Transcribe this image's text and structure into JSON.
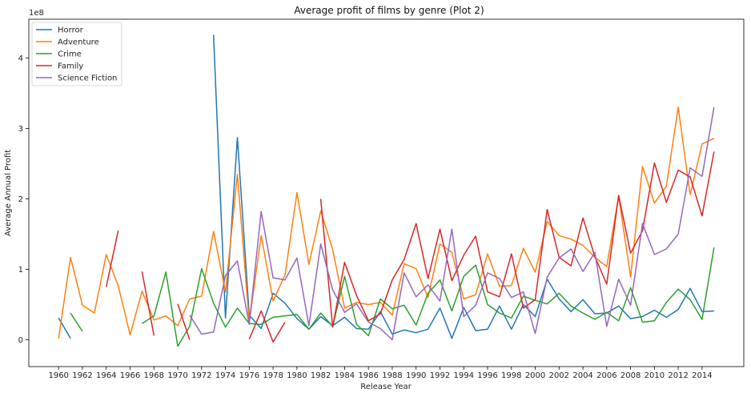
{
  "chart_data": {
    "type": "line",
    "title": "Average profit of films by genre (Plot 2)",
    "xlabel": "Release Year",
    "ylabel": "Average Annual Profit",
    "y_scale_label": "1e8",
    "y_unit_scale": 100000000,
    "xlim": [
      1957.5,
      2017.5
    ],
    "ylim": [
      -0.38,
      4.55
    ],
    "x_ticks": [
      1960,
      1962,
      1964,
      1966,
      1968,
      1970,
      1972,
      1974,
      1976,
      1978,
      1980,
      1982,
      1984,
      1986,
      1988,
      1990,
      1992,
      1994,
      1996,
      1998,
      2000,
      2002,
      2004,
      2006,
      2008,
      2010,
      2012,
      2014
    ],
    "y_ticks": [
      0,
      1,
      2,
      3,
      4
    ],
    "grid": false,
    "legend_position": "top-left",
    "series": [
      {
        "name": "Horror",
        "color": "#1f77b4",
        "points": [
          [
            1960,
            0.31
          ],
          [
            1961,
            0.02
          ],
          [
            1973,
            4.33
          ],
          [
            1974,
            0.31
          ],
          [
            1975,
            2.87
          ],
          [
            1976,
            0.35
          ],
          [
            1977,
            0.16
          ],
          [
            1978,
            0.66
          ],
          [
            1979,
            0.52
          ],
          [
            1980,
            0.3
          ],
          [
            1981,
            0.15
          ],
          [
            1982,
            0.33
          ],
          [
            1983,
            0.2
          ],
          [
            1984,
            0.32
          ],
          [
            1985,
            0.16
          ],
          [
            1986,
            0.15
          ],
          [
            1987,
            0.4
          ],
          [
            1988,
            0.08
          ],
          [
            1989,
            0.14
          ],
          [
            1990,
            0.1
          ],
          [
            1991,
            0.15
          ],
          [
            1992,
            0.45
          ],
          [
            1993,
            0.02
          ],
          [
            1994,
            0.46
          ],
          [
            1995,
            0.13
          ],
          [
            1996,
            0.15
          ],
          [
            1997,
            0.48
          ],
          [
            1998,
            0.15
          ],
          [
            1999,
            0.5
          ],
          [
            2000,
            0.33
          ],
          [
            2001,
            0.86
          ],
          [
            2002,
            0.58
          ],
          [
            2003,
            0.4
          ],
          [
            2004,
            0.57
          ],
          [
            2005,
            0.37
          ],
          [
            2006,
            0.38
          ],
          [
            2007,
            0.48
          ],
          [
            2008,
            0.3
          ],
          [
            2009,
            0.33
          ],
          [
            2010,
            0.42
          ],
          [
            2011,
            0.32
          ],
          [
            2012,
            0.43
          ],
          [
            2013,
            0.73
          ],
          [
            2014,
            0.4
          ],
          [
            2015,
            0.41
          ]
        ]
      },
      {
        "name": "Adventure",
        "color": "#ff7f0e",
        "points": [
          [
            1960,
            0.02
          ],
          [
            1961,
            1.17
          ],
          [
            1962,
            0.49
          ],
          [
            1963,
            0.38
          ],
          [
            1964,
            1.21
          ],
          [
            1965,
            0.77
          ],
          [
            1966,
            0.07
          ],
          [
            1967,
            0.69
          ],
          [
            1968,
            0.28
          ],
          [
            1969,
            0.34
          ],
          [
            1970,
            0.2
          ],
          [
            1971,
            0.58
          ],
          [
            1972,
            0.62
          ],
          [
            1973,
            1.54
          ],
          [
            1974,
            0.68
          ],
          [
            1975,
            2.35
          ],
          [
            1976,
            0.25
          ],
          [
            1977,
            1.48
          ],
          [
            1978,
            0.55
          ],
          [
            1979,
            0.92
          ],
          [
            1980,
            2.09
          ],
          [
            1981,
            1.07
          ],
          [
            1982,
            1.83
          ],
          [
            1983,
            1.28
          ],
          [
            1984,
            0.45
          ],
          [
            1985,
            0.53
          ],
          [
            1986,
            0.5
          ],
          [
            1987,
            0.53
          ],
          [
            1988,
            0.35
          ],
          [
            1989,
            1.08
          ],
          [
            1990,
            1.01
          ],
          [
            1991,
            0.6
          ],
          [
            1992,
            1.36
          ],
          [
            1993,
            1.24
          ],
          [
            1994,
            0.58
          ],
          [
            1995,
            0.64
          ],
          [
            1996,
            1.22
          ],
          [
            1997,
            0.76
          ],
          [
            1998,
            0.77
          ],
          [
            1999,
            1.3
          ],
          [
            2000,
            0.96
          ],
          [
            2001,
            1.68
          ],
          [
            2002,
            1.48
          ],
          [
            2003,
            1.43
          ],
          [
            2004,
            1.34
          ],
          [
            2005,
            1.17
          ],
          [
            2006,
            1.04
          ],
          [
            2007,
            2.04
          ],
          [
            2008,
            0.89
          ],
          [
            2009,
            2.46
          ],
          [
            2010,
            1.94
          ],
          [
            2011,
            2.18
          ],
          [
            2012,
            3.3
          ],
          [
            2013,
            2.06
          ],
          [
            2014,
            2.78
          ],
          [
            2015,
            2.86
          ]
        ]
      },
      {
        "name": "Crime",
        "color": "#2ca02c",
        "points": [
          [
            1961,
            0.38
          ],
          [
            1962,
            0.12
          ],
          [
            1967,
            0.23
          ],
          [
            1968,
            0.34
          ],
          [
            1969,
            0.96
          ],
          [
            1970,
            -0.09
          ],
          [
            1971,
            0.19
          ],
          [
            1972,
            1.01
          ],
          [
            1973,
            0.52
          ],
          [
            1974,
            0.18
          ],
          [
            1975,
            0.45
          ],
          [
            1976,
            0.23
          ],
          [
            1977,
            0.22
          ],
          [
            1978,
            0.32
          ],
          [
            1979,
            0.34
          ],
          [
            1980,
            0.36
          ],
          [
            1981,
            0.15
          ],
          [
            1982,
            0.38
          ],
          [
            1983,
            0.19
          ],
          [
            1984,
            0.9
          ],
          [
            1985,
            0.22
          ],
          [
            1986,
            0.06
          ],
          [
            1987,
            0.58
          ],
          [
            1988,
            0.44
          ],
          [
            1989,
            0.49
          ],
          [
            1990,
            0.21
          ],
          [
            1991,
            0.66
          ],
          [
            1992,
            0.85
          ],
          [
            1993,
            0.41
          ],
          [
            1994,
            0.9
          ],
          [
            1995,
            1.06
          ],
          [
            1996,
            0.5
          ],
          [
            1997,
            0.38
          ],
          [
            1998,
            0.31
          ],
          [
            1999,
            0.62
          ],
          [
            2000,
            0.56
          ],
          [
            2001,
            0.51
          ],
          [
            2002,
            0.66
          ],
          [
            2003,
            0.48
          ],
          [
            2004,
            0.38
          ],
          [
            2005,
            0.29
          ],
          [
            2006,
            0.39
          ],
          [
            2007,
            0.27
          ],
          [
            2008,
            0.74
          ],
          [
            2009,
            0.25
          ],
          [
            2010,
            0.27
          ],
          [
            2011,
            0.53
          ],
          [
            2012,
            0.72
          ],
          [
            2013,
            0.57
          ],
          [
            2014,
            0.29
          ],
          [
            2015,
            1.31
          ]
        ]
      },
      {
        "name": "Family",
        "color": "#d62728",
        "points": [
          [
            1964,
            0.75
          ],
          [
            1965,
            1.55
          ],
          [
            1967,
            0.97
          ],
          [
            1968,
            0.06
          ],
          [
            1970,
            0.51
          ],
          [
            1971,
            0.0
          ],
          [
            1976,
            0.01
          ],
          [
            1977,
            0.41
          ],
          [
            1978,
            -0.03
          ],
          [
            1979,
            0.25
          ],
          [
            1982,
            2.0
          ],
          [
            1983,
            0.18
          ],
          [
            1984,
            1.1
          ],
          [
            1985,
            0.63
          ],
          [
            1986,
            0.27
          ],
          [
            1987,
            0.37
          ],
          [
            1988,
            0.85
          ],
          [
            1989,
            1.14
          ],
          [
            1990,
            1.65
          ],
          [
            1991,
            0.87
          ],
          [
            1992,
            1.57
          ],
          [
            1993,
            0.84
          ],
          [
            1994,
            1.2
          ],
          [
            1995,
            1.47
          ],
          [
            1996,
            0.68
          ],
          [
            1997,
            0.61
          ],
          [
            1998,
            1.22
          ],
          [
            1999,
            0.45
          ],
          [
            2000,
            0.57
          ],
          [
            2001,
            1.85
          ],
          [
            2002,
            1.17
          ],
          [
            2003,
            1.05
          ],
          [
            2004,
            1.73
          ],
          [
            2005,
            1.18
          ],
          [
            2006,
            0.79
          ],
          [
            2007,
            2.05
          ],
          [
            2008,
            1.23
          ],
          [
            2009,
            1.55
          ],
          [
            2010,
            2.51
          ],
          [
            2011,
            1.95
          ],
          [
            2012,
            2.41
          ],
          [
            2013,
            2.31
          ],
          [
            2014,
            1.76
          ],
          [
            2015,
            2.67
          ]
        ]
      },
      {
        "name": "Science Fiction",
        "color": "#9467bd",
        "points": [
          [
            1971,
            0.35
          ],
          [
            1972,
            0.08
          ],
          [
            1973,
            0.11
          ],
          [
            1974,
            0.91
          ],
          [
            1975,
            1.12
          ],
          [
            1976,
            0.22
          ],
          [
            1977,
            1.82
          ],
          [
            1978,
            0.88
          ],
          [
            1979,
            0.85
          ],
          [
            1980,
            1.16
          ],
          [
            1981,
            0.2
          ],
          [
            1982,
            1.36
          ],
          [
            1983,
            0.71
          ],
          [
            1984,
            0.39
          ],
          [
            1985,
            0.51
          ],
          [
            1986,
            0.25
          ],
          [
            1987,
            0.16
          ],
          [
            1988,
            0.0
          ],
          [
            1989,
            0.95
          ],
          [
            1990,
            0.61
          ],
          [
            1991,
            0.78
          ],
          [
            1992,
            0.55
          ],
          [
            1993,
            1.57
          ],
          [
            1994,
            0.33
          ],
          [
            1995,
            0.49
          ],
          [
            1996,
            0.95
          ],
          [
            1997,
            0.87
          ],
          [
            1998,
            0.6
          ],
          [
            1999,
            0.68
          ],
          [
            2000,
            0.09
          ],
          [
            2001,
            0.89
          ],
          [
            2002,
            1.16
          ],
          [
            2003,
            1.29
          ],
          [
            2004,
            0.97
          ],
          [
            2005,
            1.24
          ],
          [
            2006,
            0.19
          ],
          [
            2007,
            0.86
          ],
          [
            2008,
            0.49
          ],
          [
            2009,
            1.65
          ],
          [
            2010,
            1.21
          ],
          [
            2011,
            1.29
          ],
          [
            2012,
            1.5
          ],
          [
            2013,
            2.44
          ],
          [
            2014,
            2.32
          ],
          [
            2015,
            3.3
          ]
        ]
      }
    ]
  }
}
